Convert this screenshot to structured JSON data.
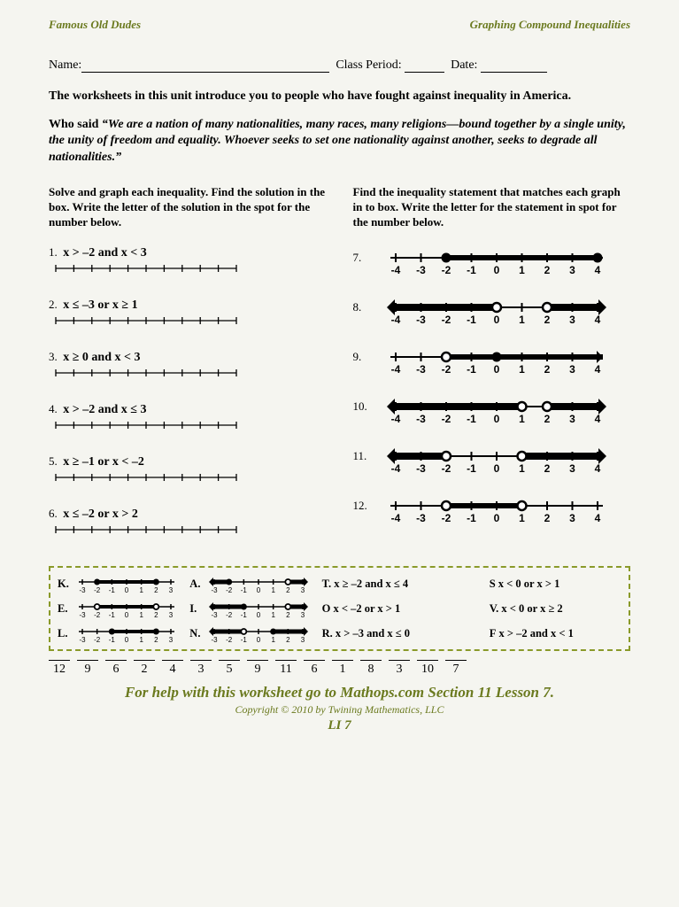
{
  "header": {
    "left": "Famous Old Dudes",
    "right": "Graphing Compound Inequalities"
  },
  "fields": {
    "name": "Name:",
    "period": "Class Period:",
    "date": "Date:"
  },
  "intro": "The worksheets in this unit introduce you to people who have fought against inequality in America.",
  "quote": {
    "who": "Who said",
    "text": "“We are a nation of many nationalities, many races, many religions—bound together by a single unity, the unity of freedom and equality. Whoever seeks to set one nationality against another, seeks to degrade all nationalities.”"
  },
  "instructions": {
    "left": "Solve and graph each inequality.  Find the solution in the box.  Write the letter of the solution in the spot for the number below.",
    "right": "Find the inequality statement that matches each graph in to box.  Write the letter for the statement in spot for the number below."
  },
  "left_problems": [
    {
      "n": "1.",
      "t": "x > –2 and x < 3"
    },
    {
      "n": "2.",
      "t": "x ≤ –3 or x ≥ 1"
    },
    {
      "n": "3.",
      "t": "x ≥ 0 and x < 3"
    },
    {
      "n": "4.",
      "t": "x > –2 and x ≤ 3"
    },
    {
      "n": "5.",
      "t": "x ≥ –1 or x < –2"
    },
    {
      "n": "6.",
      "t": "x ≤ –2 or x > 2"
    }
  ],
  "right_problems": [
    {
      "n": "7.",
      "style": "ticks_with_circles",
      "left_point": -2,
      "left_closed": true,
      "right_point": 4,
      "right_closed": true,
      "type": "between",
      "arrows": "none"
    },
    {
      "n": "8.",
      "style": "bold_arrows",
      "left_point": 0,
      "left_closed": false,
      "right_point": 2,
      "right_closed": false,
      "type": "outside",
      "arrows": "both"
    },
    {
      "n": "9.",
      "style": "ticks_with_circles",
      "left_point": -2,
      "left_closed": false,
      "right_point": 0,
      "right_closed": true,
      "type": "between_leftopen",
      "arrows": "right"
    },
    {
      "n": "10.",
      "style": "bold_arrows",
      "left_point": 1,
      "left_closed": false,
      "right_point": 2,
      "right_closed": false,
      "type": "outside",
      "arrows": "both"
    },
    {
      "n": "11.",
      "style": "bold_arrows",
      "left_point": -2,
      "left_closed": false,
      "right_point": 1,
      "right_closed": false,
      "type": "outside",
      "arrows": "both"
    },
    {
      "n": "12.",
      "style": "ticks_with_circles",
      "left_point": -2,
      "left_closed": false,
      "right_point": 1,
      "right_closed": false,
      "type": "between",
      "arrows": "none"
    }
  ],
  "axis_range": {
    "min": -4,
    "max": 4
  },
  "answer_box": {
    "rows": [
      [
        {
          "k": "K.",
          "g": {
            "lp": -2,
            "lc": true,
            "rp": 2,
            "rc": true,
            "t": "between"
          }
        },
        {
          "k": "A.",
          "g": {
            "lp": -2,
            "lc": true,
            "rp": 2,
            "rc": false,
            "t": "outside_arrows"
          }
        },
        {
          "k": "T.",
          "txt": "x ≥ –2 and x ≤ 4"
        },
        {
          "k": "S",
          "txt": "x < 0 or x > 1"
        }
      ],
      [
        {
          "k": "E.",
          "g": {
            "lp": -2,
            "lc": false,
            "rp": 2,
            "rc": false,
            "t": "between"
          }
        },
        {
          "k": "I.",
          "g": {
            "lp": -1,
            "lc": true,
            "rp": 2,
            "rc": false,
            "t": "outside_arrows"
          }
        },
        {
          "k": "O",
          "txt": "x < –2 or x > 1"
        },
        {
          "k": "V.",
          "txt": "x < 0 or x ≥ 2"
        }
      ],
      [
        {
          "k": "L.",
          "g": {
            "lp": -1,
            "lc": true,
            "rp": 2,
            "rc": true,
            "t": "between"
          }
        },
        {
          "k": "N.",
          "g": {
            "lp": -1,
            "lc": false,
            "rp": 1,
            "rc": true,
            "t": "outside_arrows"
          }
        },
        {
          "k": "R.",
          "txt": "x > –3 and x ≤ 0"
        },
        {
          "k": "F",
          "txt": "x > –2 and x < 1"
        }
      ]
    ],
    "mini_range": {
      "min": -3,
      "max": 3
    }
  },
  "sequence": [
    "12",
    "9",
    "6",
    "2",
    "4",
    "3",
    "5",
    "9",
    "11",
    "6",
    "1",
    "8",
    "3",
    "10",
    "7"
  ],
  "footer": {
    "help": "For help with this worksheet go to Mathops.com Section 11 Lesson 7.",
    "copy": "Copyright © 2010 by Twining Mathematics, LLC",
    "page": "LI 7"
  },
  "colors": {
    "olive": "#6b7a1f",
    "dash": "#8a9a2a",
    "black": "#000000",
    "bg": "#f5f5f0"
  }
}
